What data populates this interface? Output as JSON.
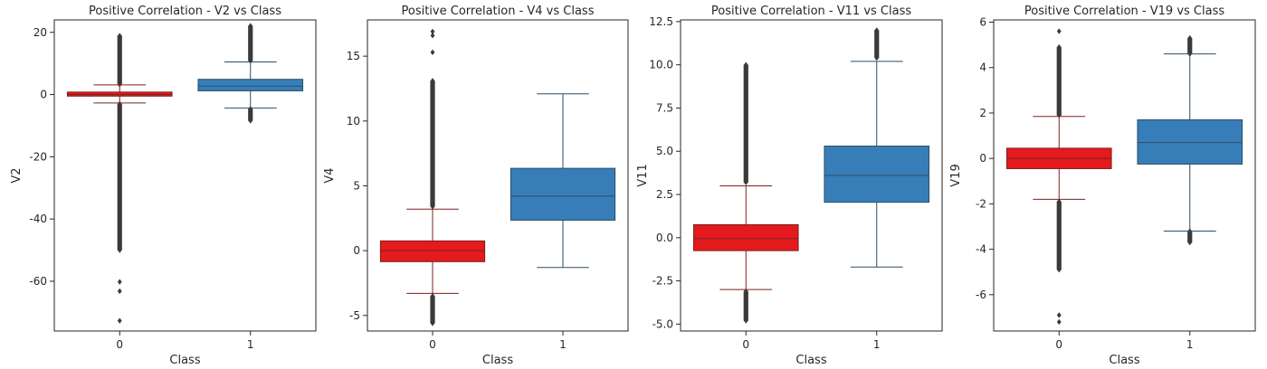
{
  "chart_data": [
    {
      "type": "box",
      "title": "Positive Correlation - V2 vs Class",
      "xlabel": "Class",
      "ylabel": "V2",
      "categories": [
        "0",
        "1"
      ],
      "ylim": [
        -76,
        24
      ],
      "yticks": [
        -60,
        -40,
        -20,
        0,
        20
      ],
      "boxes": [
        {
          "category": "0",
          "color": "#e41a1c",
          "whisker_low": -2.7,
          "q1": -0.5,
          "median": 0.0,
          "q3": 0.8,
          "whisker_high": 3.1,
          "outlier_range_low": [
            -50,
            -3.0
          ],
          "outlier_range_high": [
            3.3,
            18.9
          ],
          "sparse_outliers": [
            -60.2,
            -63.2,
            -72.7
          ]
        },
        {
          "category": "1",
          "color": "#377eb8",
          "whisker_low": -4.3,
          "q1": 1.2,
          "median": 2.7,
          "q3": 4.9,
          "whisker_high": 10.5,
          "outlier_range_low": [
            -8.4,
            -4.6
          ],
          "outlier_range_high": [
            10.8,
            22.1
          ],
          "sparse_outliers": []
        }
      ]
    },
    {
      "type": "box",
      "title": "Positive Correlation - V4 vs Class",
      "xlabel": "Class",
      "ylabel": "V4",
      "categories": [
        "0",
        "1"
      ],
      "ylim": [
        -6.2,
        17.8
      ],
      "yticks": [
        -5,
        0,
        5,
        10,
        15
      ],
      "boxes": [
        {
          "category": "0",
          "color": "#e41a1c",
          "whisker_low": -3.3,
          "q1": -0.85,
          "median": 0.0,
          "q3": 0.75,
          "whisker_high": 3.2,
          "outlier_range_low": [
            -5.6,
            -3.5
          ],
          "outlier_range_high": [
            3.4,
            13.1
          ],
          "sparse_outliers": [
            15.3,
            16.6,
            16.9
          ]
        },
        {
          "category": "1",
          "color": "#377eb8",
          "whisker_low": -1.3,
          "q1": 2.35,
          "median": 4.2,
          "q3": 6.35,
          "whisker_high": 12.1,
          "outlier_range_low": null,
          "outlier_range_high": null,
          "sparse_outliers": []
        }
      ]
    },
    {
      "type": "box",
      "title": "Positive Correlation - V11 vs Class",
      "xlabel": "Class",
      "ylabel": "V11",
      "categories": [
        "0",
        "1"
      ],
      "ylim": [
        -5.4,
        12.6
      ],
      "yticks": [
        -5.0,
        -2.5,
        0.0,
        2.5,
        5.0,
        7.5,
        10.0,
        12.5
      ],
      "ytick_labels": [
        "-5.0",
        "-2.5",
        "0.0",
        "2.5",
        "5.0",
        "7.5",
        "10.0",
        "12.5"
      ],
      "boxes": [
        {
          "category": "0",
          "color": "#e41a1c",
          "whisker_low": -3.0,
          "q1": -0.75,
          "median": -0.05,
          "q3": 0.75,
          "whisker_high": 3.0,
          "outlier_range_low": [
            -4.8,
            -3.1
          ],
          "outlier_range_high": [
            3.2,
            10.0
          ],
          "sparse_outliers": []
        },
        {
          "category": "1",
          "color": "#377eb8",
          "whisker_low": -1.7,
          "q1": 2.05,
          "median": 3.6,
          "q3": 5.3,
          "whisker_high": 10.2,
          "outlier_range_low": null,
          "outlier_range_high": [
            10.4,
            12.0
          ],
          "sparse_outliers": []
        }
      ]
    },
    {
      "type": "box",
      "title": "Positive Correlation - V19 vs Class",
      "xlabel": "Class",
      "ylabel": "V19",
      "categories": [
        "0",
        "1"
      ],
      "ylim": [
        -7.6,
        6.1
      ],
      "yticks": [
        -6,
        -4,
        -2,
        0,
        2,
        4,
        6
      ],
      "boxes": [
        {
          "category": "0",
          "color": "#e41a1c",
          "whisker_low": -1.8,
          "q1": -0.45,
          "median": 0.0,
          "q3": 0.45,
          "whisker_high": 1.85,
          "outlier_range_low": [
            -4.9,
            -1.9
          ],
          "outlier_range_high": [
            1.9,
            4.9
          ],
          "sparse_outliers": [
            5.6,
            -6.9,
            -7.2
          ]
        },
        {
          "category": "1",
          "color": "#377eb8",
          "whisker_low": -3.2,
          "q1": -0.25,
          "median": 0.7,
          "q3": 1.7,
          "whisker_high": 4.6,
          "outlier_range_low": [
            -3.7,
            -3.2
          ],
          "outlier_range_high": [
            4.6,
            5.3
          ],
          "sparse_outliers": []
        }
      ]
    }
  ]
}
